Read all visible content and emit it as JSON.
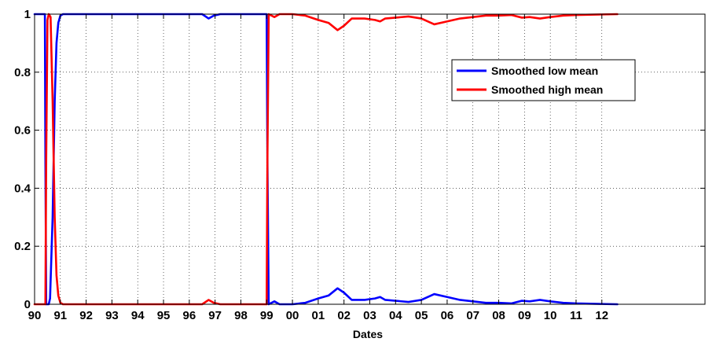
{
  "chart_data": {
    "type": "line",
    "xlabel": "Dates",
    "ylabel": "",
    "title": "",
    "xlim": [
      1990,
      2016
    ],
    "ylim": [
      0,
      1
    ],
    "x_ticks": [
      {
        "value": 1990,
        "label": "90"
      },
      {
        "value": 1991,
        "label": "91"
      },
      {
        "value": 1992,
        "label": "92"
      },
      {
        "value": 1993,
        "label": "93"
      },
      {
        "value": 1994,
        "label": "94"
      },
      {
        "value": 1995,
        "label": "95"
      },
      {
        "value": 1996,
        "label": "96"
      },
      {
        "value": 1997,
        "label": "97"
      },
      {
        "value": 1998,
        "label": "98"
      },
      {
        "value": 1999,
        "label": "99"
      },
      {
        "value": 2000,
        "label": "00"
      },
      {
        "value": 2001,
        "label": "01"
      },
      {
        "value": 2002,
        "label": "02"
      },
      {
        "value": 2003,
        "label": "03"
      },
      {
        "value": 2004,
        "label": "04"
      },
      {
        "value": 2005,
        "label": "05"
      },
      {
        "value": 2006,
        "label": "06"
      },
      {
        "value": 2007,
        "label": "07"
      },
      {
        "value": 2008,
        "label": "08"
      },
      {
        "value": 2009,
        "label": "09"
      },
      {
        "value": 2010,
        "label": "10"
      },
      {
        "value": 2011,
        "label": "11"
      },
      {
        "value": 2012,
        "label": "12"
      }
    ],
    "y_ticks": [
      {
        "value": 0,
        "label": "0"
      },
      {
        "value": 0.2,
        "label": "0.2"
      },
      {
        "value": 0.4,
        "label": "0.4"
      },
      {
        "value": 0.6,
        "label": "0.6"
      },
      {
        "value": 0.8,
        "label": "0.8"
      },
      {
        "value": 1,
        "label": "1"
      }
    ],
    "grid": true,
    "legend_position": "top-right",
    "series": [
      {
        "name": "Smoothed low mean",
        "color": "#0000ff",
        "points": [
          [
            1990.0,
            1.0
          ],
          [
            1990.4,
            1.0
          ],
          [
            1990.42,
            0.5
          ],
          [
            1990.45,
            0.0
          ],
          [
            1990.55,
            0.0
          ],
          [
            1990.6,
            0.02
          ],
          [
            1990.7,
            0.3
          ],
          [
            1990.78,
            0.7
          ],
          [
            1990.85,
            0.9
          ],
          [
            1990.92,
            0.97
          ],
          [
            1991.0,
            0.995
          ],
          [
            1991.1,
            1.0
          ],
          [
            1996.5,
            1.0
          ],
          [
            1996.75,
            0.985
          ],
          [
            1996.95,
            0.995
          ],
          [
            1997.2,
            1.0
          ],
          [
            1999.0,
            1.0
          ],
          [
            1999.03,
            0.5
          ],
          [
            1999.08,
            0.0
          ],
          [
            1999.3,
            0.01
          ],
          [
            1999.5,
            0.0
          ],
          [
            2000.0,
            0.0
          ],
          [
            2000.5,
            0.005
          ],
          [
            2001.0,
            0.02
          ],
          [
            2001.4,
            0.03
          ],
          [
            2001.75,
            0.055
          ],
          [
            2002.0,
            0.04
          ],
          [
            2002.3,
            0.015
          ],
          [
            2002.8,
            0.015
          ],
          [
            2003.2,
            0.02
          ],
          [
            2003.4,
            0.025
          ],
          [
            2003.6,
            0.015
          ],
          [
            2004.0,
            0.012
          ],
          [
            2004.5,
            0.008
          ],
          [
            2005.0,
            0.015
          ],
          [
            2005.5,
            0.035
          ],
          [
            2006.0,
            0.025
          ],
          [
            2006.5,
            0.015
          ],
          [
            2007.0,
            0.01
          ],
          [
            2007.5,
            0.005
          ],
          [
            2008.0,
            0.005
          ],
          [
            2008.5,
            0.003
          ],
          [
            2008.9,
            0.012
          ],
          [
            2009.2,
            0.01
          ],
          [
            2009.6,
            0.015
          ],
          [
            2010.0,
            0.01
          ],
          [
            2010.5,
            0.005
          ],
          [
            2011.0,
            0.003
          ],
          [
            2012.0,
            0.001
          ],
          [
            2012.6,
            0.0
          ]
        ]
      },
      {
        "name": "Smoothed high mean",
        "color": "#ff0000",
        "points": [
          [
            1990.0,
            0.0
          ],
          [
            1990.42,
            0.0
          ],
          [
            1990.45,
            0.5
          ],
          [
            1990.5,
            0.98
          ],
          [
            1990.55,
            1.0
          ],
          [
            1990.62,
            0.99
          ],
          [
            1990.7,
            0.7
          ],
          [
            1990.78,
            0.3
          ],
          [
            1990.85,
            0.1
          ],
          [
            1990.92,
            0.03
          ],
          [
            1991.0,
            0.005
          ],
          [
            1991.1,
            0.0
          ],
          [
            1996.5,
            0.0
          ],
          [
            1996.75,
            0.015
          ],
          [
            1996.95,
            0.005
          ],
          [
            1997.2,
            0.0
          ],
          [
            1999.0,
            0.0
          ],
          [
            1999.03,
            0.5
          ],
          [
            1999.08,
            1.0
          ],
          [
            1999.3,
            0.99
          ],
          [
            1999.5,
            1.0
          ],
          [
            2000.0,
            1.0
          ],
          [
            2000.5,
            0.995
          ],
          [
            2001.0,
            0.98
          ],
          [
            2001.4,
            0.97
          ],
          [
            2001.75,
            0.945
          ],
          [
            2002.0,
            0.96
          ],
          [
            2002.3,
            0.985
          ],
          [
            2002.8,
            0.985
          ],
          [
            2003.2,
            0.98
          ],
          [
            2003.4,
            0.975
          ],
          [
            2003.6,
            0.985
          ],
          [
            2004.0,
            0.988
          ],
          [
            2004.5,
            0.992
          ],
          [
            2005.0,
            0.985
          ],
          [
            2005.5,
            0.965
          ],
          [
            2006.0,
            0.975
          ],
          [
            2006.5,
            0.985
          ],
          [
            2007.0,
            0.99
          ],
          [
            2007.5,
            0.995
          ],
          [
            2008.0,
            0.995
          ],
          [
            2008.5,
            0.997
          ],
          [
            2008.9,
            0.988
          ],
          [
            2009.2,
            0.99
          ],
          [
            2009.6,
            0.985
          ],
          [
            2010.0,
            0.99
          ],
          [
            2010.5,
            0.995
          ],
          [
            2011.0,
            0.997
          ],
          [
            2012.0,
            0.999
          ],
          [
            2012.6,
            1.0
          ]
        ]
      }
    ]
  }
}
